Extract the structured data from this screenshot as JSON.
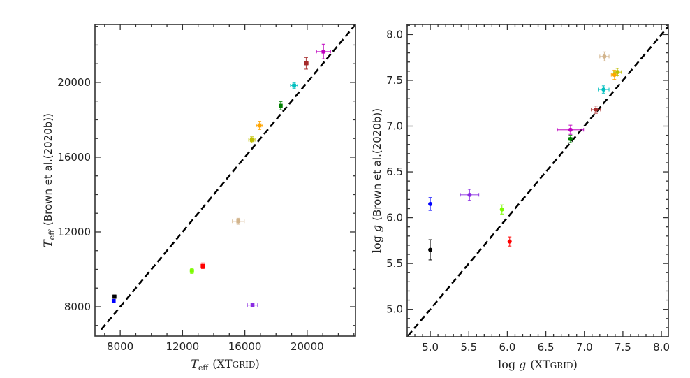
{
  "chart_data": [
    {
      "type": "scatter",
      "title": "",
      "xlabel": "T_eff (XTGRID)",
      "xlabel_parts": {
        "sym": "T",
        "sub": "eff",
        "paren": "(XT",
        "sc": "GRID",
        "close": ")"
      },
      "ylabel": "T_eff (Brown et al.(2020b))",
      "ylabel_parts": {
        "sym": "T",
        "sub": "eff",
        "text": "(Brown et al.(2020b))"
      },
      "xlim": [
        6380,
        23100
      ],
      "ylim": [
        6430,
        23100
      ],
      "xticks": [
        8000,
        12000,
        16000,
        20000
      ],
      "yticks": [
        8000,
        12000,
        16000,
        20000
      ],
      "xminor": 1000,
      "yminor": 1000,
      "reference_line": "y = x (dashed)",
      "points": [
        {
          "color": "#000000",
          "x": 7630,
          "y": 8540,
          "xerr": 60,
          "yerr": 90
        },
        {
          "color": "#0000ff",
          "x": 7580,
          "y": 8310,
          "xerr": 60,
          "yerr": 60
        },
        {
          "color": "#7cfc00",
          "x": 12600,
          "y": 9910,
          "xerr": 110,
          "yerr": 130
        },
        {
          "color": "#ff0000",
          "x": 13300,
          "y": 10190,
          "xerr": 110,
          "yerr": 150
        },
        {
          "color": "#8a2be2",
          "x": 16490,
          "y": 8090,
          "xerr": 330,
          "yerr": 90
        },
        {
          "color": "#d2b48c",
          "x": 15580,
          "y": 12570,
          "xerr": 380,
          "yerr": 160
        },
        {
          "color": "#bfbf00",
          "x": 16450,
          "y": 16930,
          "xerr": 200,
          "yerr": 160
        },
        {
          "color": "#ffa500",
          "x": 16940,
          "y": 17700,
          "xerr": 200,
          "yerr": 220
        },
        {
          "color": "#008000",
          "x": 18300,
          "y": 18750,
          "xerr": 90,
          "yerr": 220
        },
        {
          "color": "#00bfbf",
          "x": 19160,
          "y": 19830,
          "xerr": 230,
          "yerr": 160
        },
        {
          "color": "#a52a2a",
          "x": 19940,
          "y": 21020,
          "xerr": 120,
          "yerr": 310
        },
        {
          "color": "#bf00bf",
          "x": 21050,
          "y": 21650,
          "xerr": 450,
          "yerr": 390
        }
      ]
    },
    {
      "type": "scatter",
      "title": "",
      "xlabel": "log g (XTGRID)",
      "xlabel_parts": {
        "log": "log",
        "sym": "g",
        "paren": "(XT",
        "sc": "GRID",
        "close": ")"
      },
      "ylabel": "log g (Brown et al.(2020b))",
      "ylabel_parts": {
        "log": "log",
        "sym": "g",
        "text": "(Brown et al.(2020b))"
      },
      "xlim": [
        4.7,
        8.09
      ],
      "ylim": [
        4.7,
        8.11
      ],
      "xticks": [
        5.0,
        5.5,
        6.0,
        6.5,
        7.0,
        7.5,
        8.0
      ],
      "yticks": [
        5.0,
        5.5,
        6.0,
        6.5,
        7.0,
        7.5,
        8.0
      ],
      "xminor": 0.1,
      "yminor": 0.1,
      "reference_line": "y = x (dashed)",
      "points": [
        {
          "color": "#000000",
          "x": 5.0,
          "y": 5.65,
          "xerr": 0.0,
          "yerr": 0.11
        },
        {
          "color": "#0000ff",
          "x": 5.0,
          "y": 6.15,
          "xerr": 0.0,
          "yerr": 0.07
        },
        {
          "color": "#8a2be2",
          "x": 5.51,
          "y": 6.25,
          "xerr": 0.12,
          "yerr": 0.06
        },
        {
          "color": "#7cfc00",
          "x": 5.93,
          "y": 6.09,
          "xerr": 0.0,
          "yerr": 0.05
        },
        {
          "color": "#ff0000",
          "x": 6.03,
          "y": 5.74,
          "xerr": 0.0,
          "yerr": 0.05
        },
        {
          "color": "#008000",
          "x": 6.82,
          "y": 6.86,
          "xerr": 0.02,
          "yerr": 0.04
        },
        {
          "color": "#bf00bf",
          "x": 6.82,
          "y": 6.96,
          "xerr": 0.17,
          "yerr": 0.05
        },
        {
          "color": "#a52a2a",
          "x": 7.15,
          "y": 7.18,
          "xerr": 0.06,
          "yerr": 0.04
        },
        {
          "color": "#00bfbf",
          "x": 7.25,
          "y": 7.4,
          "xerr": 0.07,
          "yerr": 0.04
        },
        {
          "color": "#ffa500",
          "x": 7.39,
          "y": 7.56,
          "xerr": 0.04,
          "yerr": 0.05
        },
        {
          "color": "#bfbf00",
          "x": 7.43,
          "y": 7.59,
          "xerr": 0.05,
          "yerr": 0.04
        },
        {
          "color": "#d2b48c",
          "x": 7.26,
          "y": 7.76,
          "xerr": 0.06,
          "yerr": 0.05
        }
      ]
    }
  ]
}
